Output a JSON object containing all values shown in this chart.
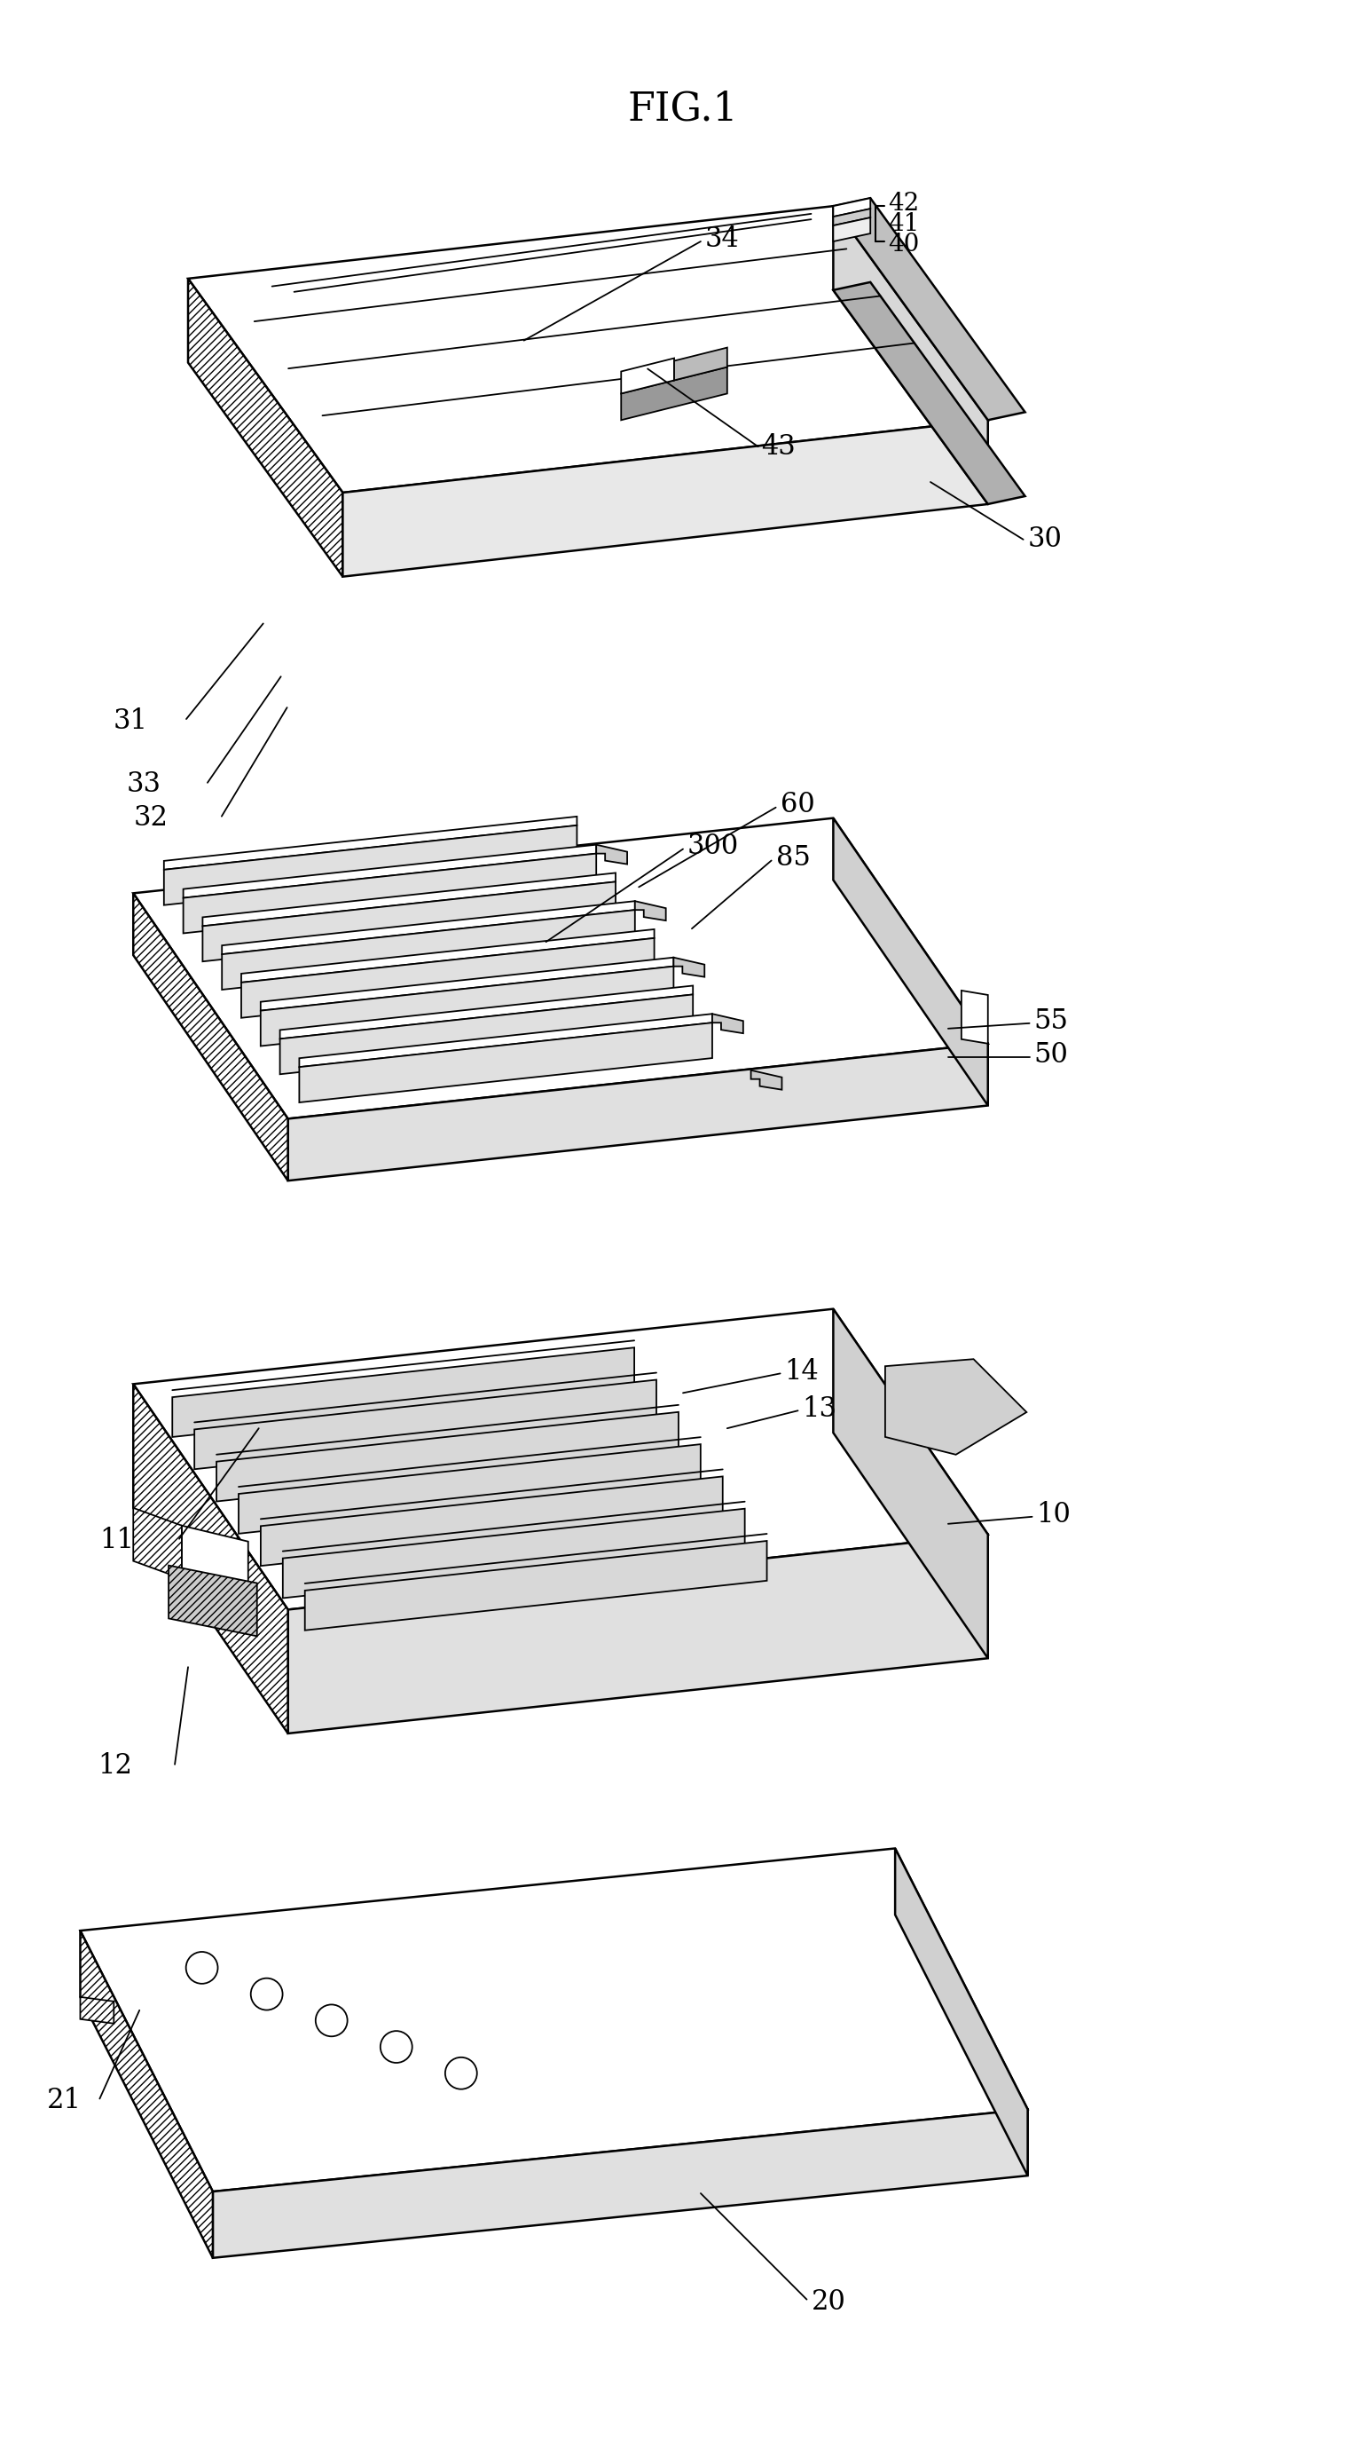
{
  "title": "FIG.1",
  "title_fontsize": 32,
  "background_color": "#ffffff",
  "line_color": "#000000",
  "label_fontsize": 22,
  "lw_main": 1.8,
  "lw_thin": 1.3
}
